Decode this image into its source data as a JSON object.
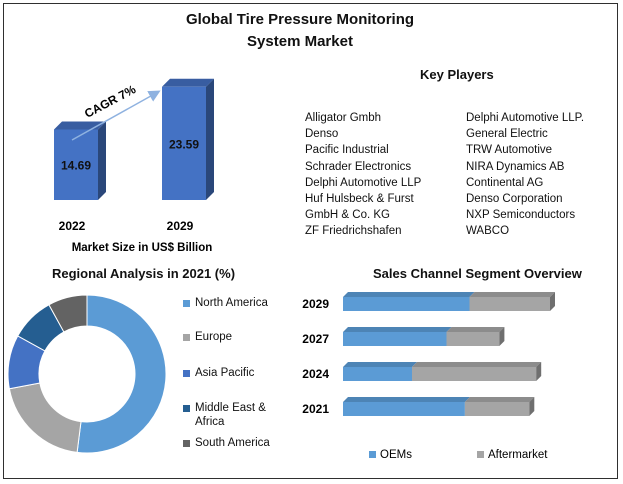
{
  "title": "Global Tire Pressure Monitoring System Market",
  "chart_data": [
    {
      "type": "bar",
      "categories": [
        "2022",
        "2029"
      ],
      "values": [
        14.69,
        23.59
      ],
      "value_labels": [
        "14.69",
        "23.59"
      ],
      "annotation": "CAGR 7%",
      "xlabel": "Market Size in US$ Billion",
      "bar_color": "#4472c4"
    },
    {
      "type": "pie",
      "title": "Regional Analysis in 2021 (%)",
      "donut": true,
      "slices": [
        {
          "label": "North America",
          "value": 52,
          "color": "#5b9bd5"
        },
        {
          "label": "Europe",
          "value": 20,
          "color": "#a5a5a5"
        },
        {
          "label": "Asia Pacific",
          "value": 11,
          "color": "#4472c4"
        },
        {
          "label": "Middle East & Africa",
          "value": 9,
          "color": "#255e91"
        },
        {
          "label": "South America",
          "value": 8,
          "color": "#636363"
        }
      ],
      "legend_position": "right"
    },
    {
      "type": "bar",
      "orientation": "horizontal",
      "stacked": true,
      "title": "Sales Channel Segment Overview",
      "categories": [
        "2029",
        "2027",
        "2024",
        "2021"
      ],
      "series": [
        {
          "name": "OEMs",
          "values": [
            55,
            45,
            30,
            53
          ],
          "color": "#5b9bd5"
        },
        {
          "name": "Aftermarket",
          "values": [
            35,
            23,
            54,
            28
          ],
          "color": "#a5a5a5"
        }
      ],
      "legend_position": "bottom"
    }
  ],
  "key_players": {
    "title": "Key Players",
    "col1": [
      "Alligator Gmbh",
      "Denso",
      "Pacific Industrial",
      "Schrader Electronics",
      "Delphi Automotive LLP",
      "Huf Hulsbeck & Furst",
      "GmbH & Co. KG",
      "ZF Friedrichshafen"
    ],
    "col2": [
      "Delphi Automotive LLP.",
      "General Electric",
      "TRW Automotive",
      "NIRA Dynamics AB",
      "Continental AG",
      "Denso Corporation",
      "NXP Semiconductors",
      "WABCO"
    ]
  }
}
